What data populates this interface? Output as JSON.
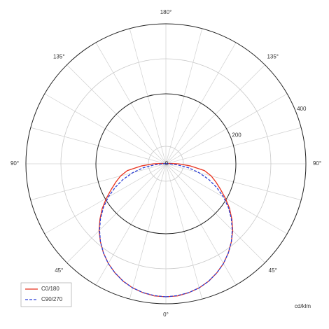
{
  "chart_data": {
    "type": "polar",
    "unit_label": "cd/klm",
    "rlim": [
      0,
      400
    ],
    "rticks": [
      200,
      400
    ],
    "rgrid_minor": [
      50,
      300
    ],
    "agrid": [
      0,
      15,
      30,
      45,
      60,
      75,
      90,
      105,
      120,
      135,
      150,
      165,
      180,
      195,
      210,
      225,
      240,
      255,
      270,
      285,
      300,
      315,
      330,
      345
    ],
    "angle_ticks": [
      {
        "value": 0,
        "label": "0°"
      },
      {
        "value": 45,
        "label": "45°"
      },
      {
        "value": 90,
        "label": "90°"
      },
      {
        "value": 135,
        "label": "135°"
      },
      {
        "value": 180,
        "label": "180°"
      },
      {
        "value": 225,
        "label": "135°"
      },
      {
        "value": 270,
        "label": "90°"
      },
      {
        "value": 315,
        "label": "45°"
      }
    ],
    "angles": [
      0,
      5,
      10,
      15,
      20,
      25,
      30,
      35,
      40,
      45,
      50,
      55,
      60,
      65,
      70,
      75,
      80,
      85,
      90,
      95,
      100,
      105,
      110,
      115,
      120,
      125,
      130,
      135,
      140,
      145,
      150,
      155,
      160,
      165,
      170,
      175,
      180
    ],
    "series": [
      {
        "name": "C0/180",
        "color": "#e8321e",
        "dashed": false,
        "values": [
          380,
          379,
          374,
          367,
          357,
          344,
          329,
          311,
          291,
          270,
          246,
          222,
          196,
          172,
          152,
          134,
          112,
          70,
          36,
          10,
          4,
          2,
          1,
          1,
          1,
          1,
          1,
          1,
          1,
          1,
          1,
          1,
          1,
          1,
          1,
          1,
          1
        ]
      },
      {
        "name": "C90/270",
        "color": "#2a3fd6",
        "dashed": true,
        "values": [
          380,
          378,
          374,
          367,
          357,
          344,
          329,
          311,
          291,
          268,
          244,
          218,
          190,
          160,
          130,
          98,
          66,
          32,
          10,
          4,
          2,
          1,
          1,
          1,
          1,
          1,
          1,
          1,
          1,
          1,
          1,
          1,
          1,
          1,
          1,
          1,
          1
        ]
      }
    ]
  }
}
